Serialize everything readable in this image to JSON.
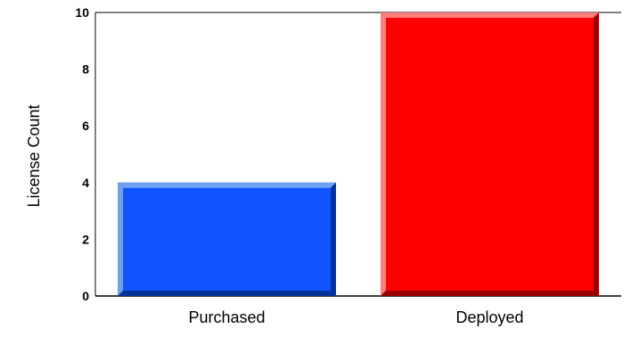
{
  "chart_data": {
    "type": "bar",
    "categories": [
      "Purchased",
      "Deployed"
    ],
    "values": [
      4,
      10
    ],
    "ylabel": "License Count",
    "xlabel": "",
    "ylim": [
      0,
      10
    ],
    "yticks": [
      0,
      2,
      4,
      6,
      8,
      10
    ],
    "grid": false,
    "legend": "none",
    "colors": {
      "Purchased": {
        "face": "#1155ff",
        "light": "#6fa1ef",
        "dark": "#00339a"
      },
      "Deployed": {
        "face": "#ff0000",
        "light": "#ff7d7d",
        "dark": "#990000"
      },
      "axis": "#000000",
      "text": "#000000"
    }
  }
}
